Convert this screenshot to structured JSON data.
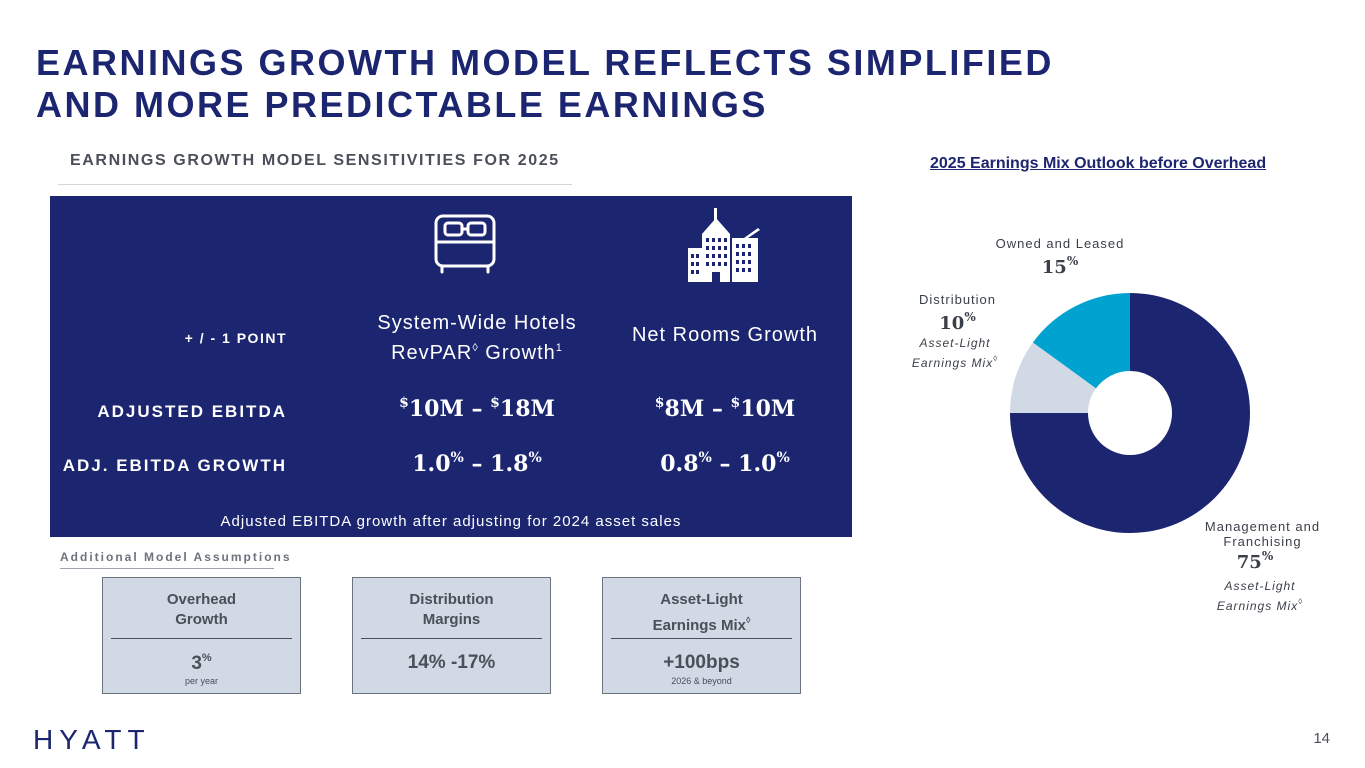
{
  "title_line1": "EARNINGS GROWTH MODEL REFLECTS SIMPLIFIED",
  "title_line2": "AND MORE PREDICTABLE EARNINGS",
  "subtitle": "EARNINGS GROWTH MODEL SENSITIVITIES FOR 2025",
  "panel": {
    "icons": [
      "bed-icon",
      "building-icon"
    ],
    "row_header": "+ / - 1 POINT",
    "col1_line1": "System-Wide Hotels",
    "col1_line2": "RevPAR",
    "col1_diamond": "◊",
    "col1_line2b": " Growth",
    "col1_footnote": "1",
    "col2": "Net Rooms Growth",
    "row1_label": "ADJUSTED EBITDA",
    "row2_label": "ADJ. EBITDA GROWTH",
    "row1_col1": {
      "cur_a": "$",
      "a": "10M",
      "dash": " – ",
      "cur_b": "$",
      "b": "18M"
    },
    "row1_col2": {
      "cur_a": "$",
      "a": "8M",
      "dash": " – ",
      "cur_b": "$",
      "b": "10M"
    },
    "row2_col1": {
      "a": "1.0",
      "pct_a": "%",
      "dash": " – ",
      "b": "1.8",
      "pct_b": "%"
    },
    "row2_col2": {
      "a": "0.8",
      "pct_a": "%",
      "dash": " – ",
      "b": "1.0",
      "pct_b": "%"
    },
    "footer": "Adjusted EBITDA growth after adjusting for 2024 asset sales"
  },
  "additional": {
    "heading": "Additional Model Assumptions",
    "cards": [
      {
        "title1": "Overhead",
        "title2": "Growth",
        "value": "3",
        "value_sup": "%",
        "sub": "per year"
      },
      {
        "title1": "Distribution",
        "title2": "Margins",
        "value": "14% -17%",
        "sub": ""
      },
      {
        "title1": "Asset-Light",
        "title2": "Earnings Mix",
        "title2_sup": "◊",
        "value": "+100bps",
        "sub": "2026 & beyond"
      }
    ]
  },
  "chart_data": {
    "type": "pie",
    "title": "2025 Earnings Mix Outlook before Overhead",
    "slices": [
      {
        "name": "Management and Franchising",
        "value": 75,
        "color": "#1c2570"
      },
      {
        "name": "Distribution",
        "value": 10,
        "color": "#d0d9e4"
      },
      {
        "name": "Owned and Leased",
        "value": 15,
        "color": "#00a3d0"
      }
    ],
    "labels": {
      "owned_name": "Owned and Leased",
      "owned_value": "15",
      "dist_name": "Distribution",
      "dist_value": "10",
      "mgmt_name1": "Management and",
      "mgmt_name2": "Franchising",
      "mgmt_value": "75",
      "pct": "%",
      "note_line1": "Asset-Light",
      "note_line2": "Earnings Mix",
      "note_sup": "◊"
    }
  },
  "logo_text": "HYATT",
  "page_number": "14"
}
